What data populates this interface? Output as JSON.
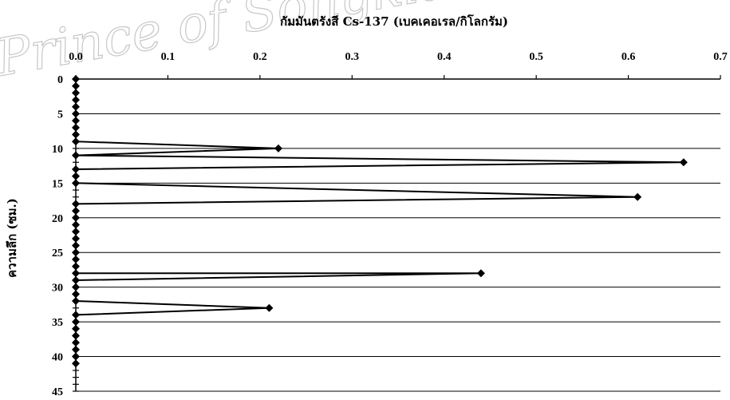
{
  "watermark": "Prince of Songkla University Pattani Campus",
  "chart_data": {
    "type": "line",
    "title": "",
    "xlabel": "กัมมันตรังสี Cs-137 (เบคเคอเรล/กิโลกรัม)",
    "ylabel": "ความลึก (ซม.)",
    "x_axis_position": "top",
    "y_axis_inverted": true,
    "xlim": [
      0,
      0.7
    ],
    "ylim": [
      0,
      45
    ],
    "x_ticks": [
      "0.0",
      "0.1",
      "0.2",
      "0.3",
      "0.4",
      "0.5",
      "0.6",
      "0.7"
    ],
    "y_ticks": [
      "0",
      "5",
      "10",
      "15",
      "20",
      "25",
      "30",
      "35",
      "40",
      "45"
    ],
    "grid": "horizontal",
    "legend": "none",
    "color": "#000000",
    "marker": "diamond",
    "series": [
      {
        "x": [
          0,
          0,
          0,
          0,
          0,
          0,
          0,
          0,
          0,
          0,
          0.22,
          0,
          0.66,
          0,
          0,
          0,
          0.61,
          0,
          0,
          0,
          0,
          0,
          0,
          0,
          0,
          0,
          0,
          0,
          0.44,
          0,
          0,
          0,
          0,
          0.21,
          0,
          0,
          0,
          0,
          0,
          0,
          0,
          0
        ],
        "y": [
          0,
          1,
          2,
          3,
          4,
          5,
          6,
          7,
          8,
          9,
          10,
          11,
          12,
          13,
          14,
          15,
          17,
          18,
          19,
          20,
          21,
          22,
          23,
          24,
          25,
          26,
          27,
          28,
          28,
          29,
          30,
          31,
          32,
          33,
          34,
          35,
          36,
          37,
          38,
          39,
          40,
          41
        ]
      }
    ]
  }
}
